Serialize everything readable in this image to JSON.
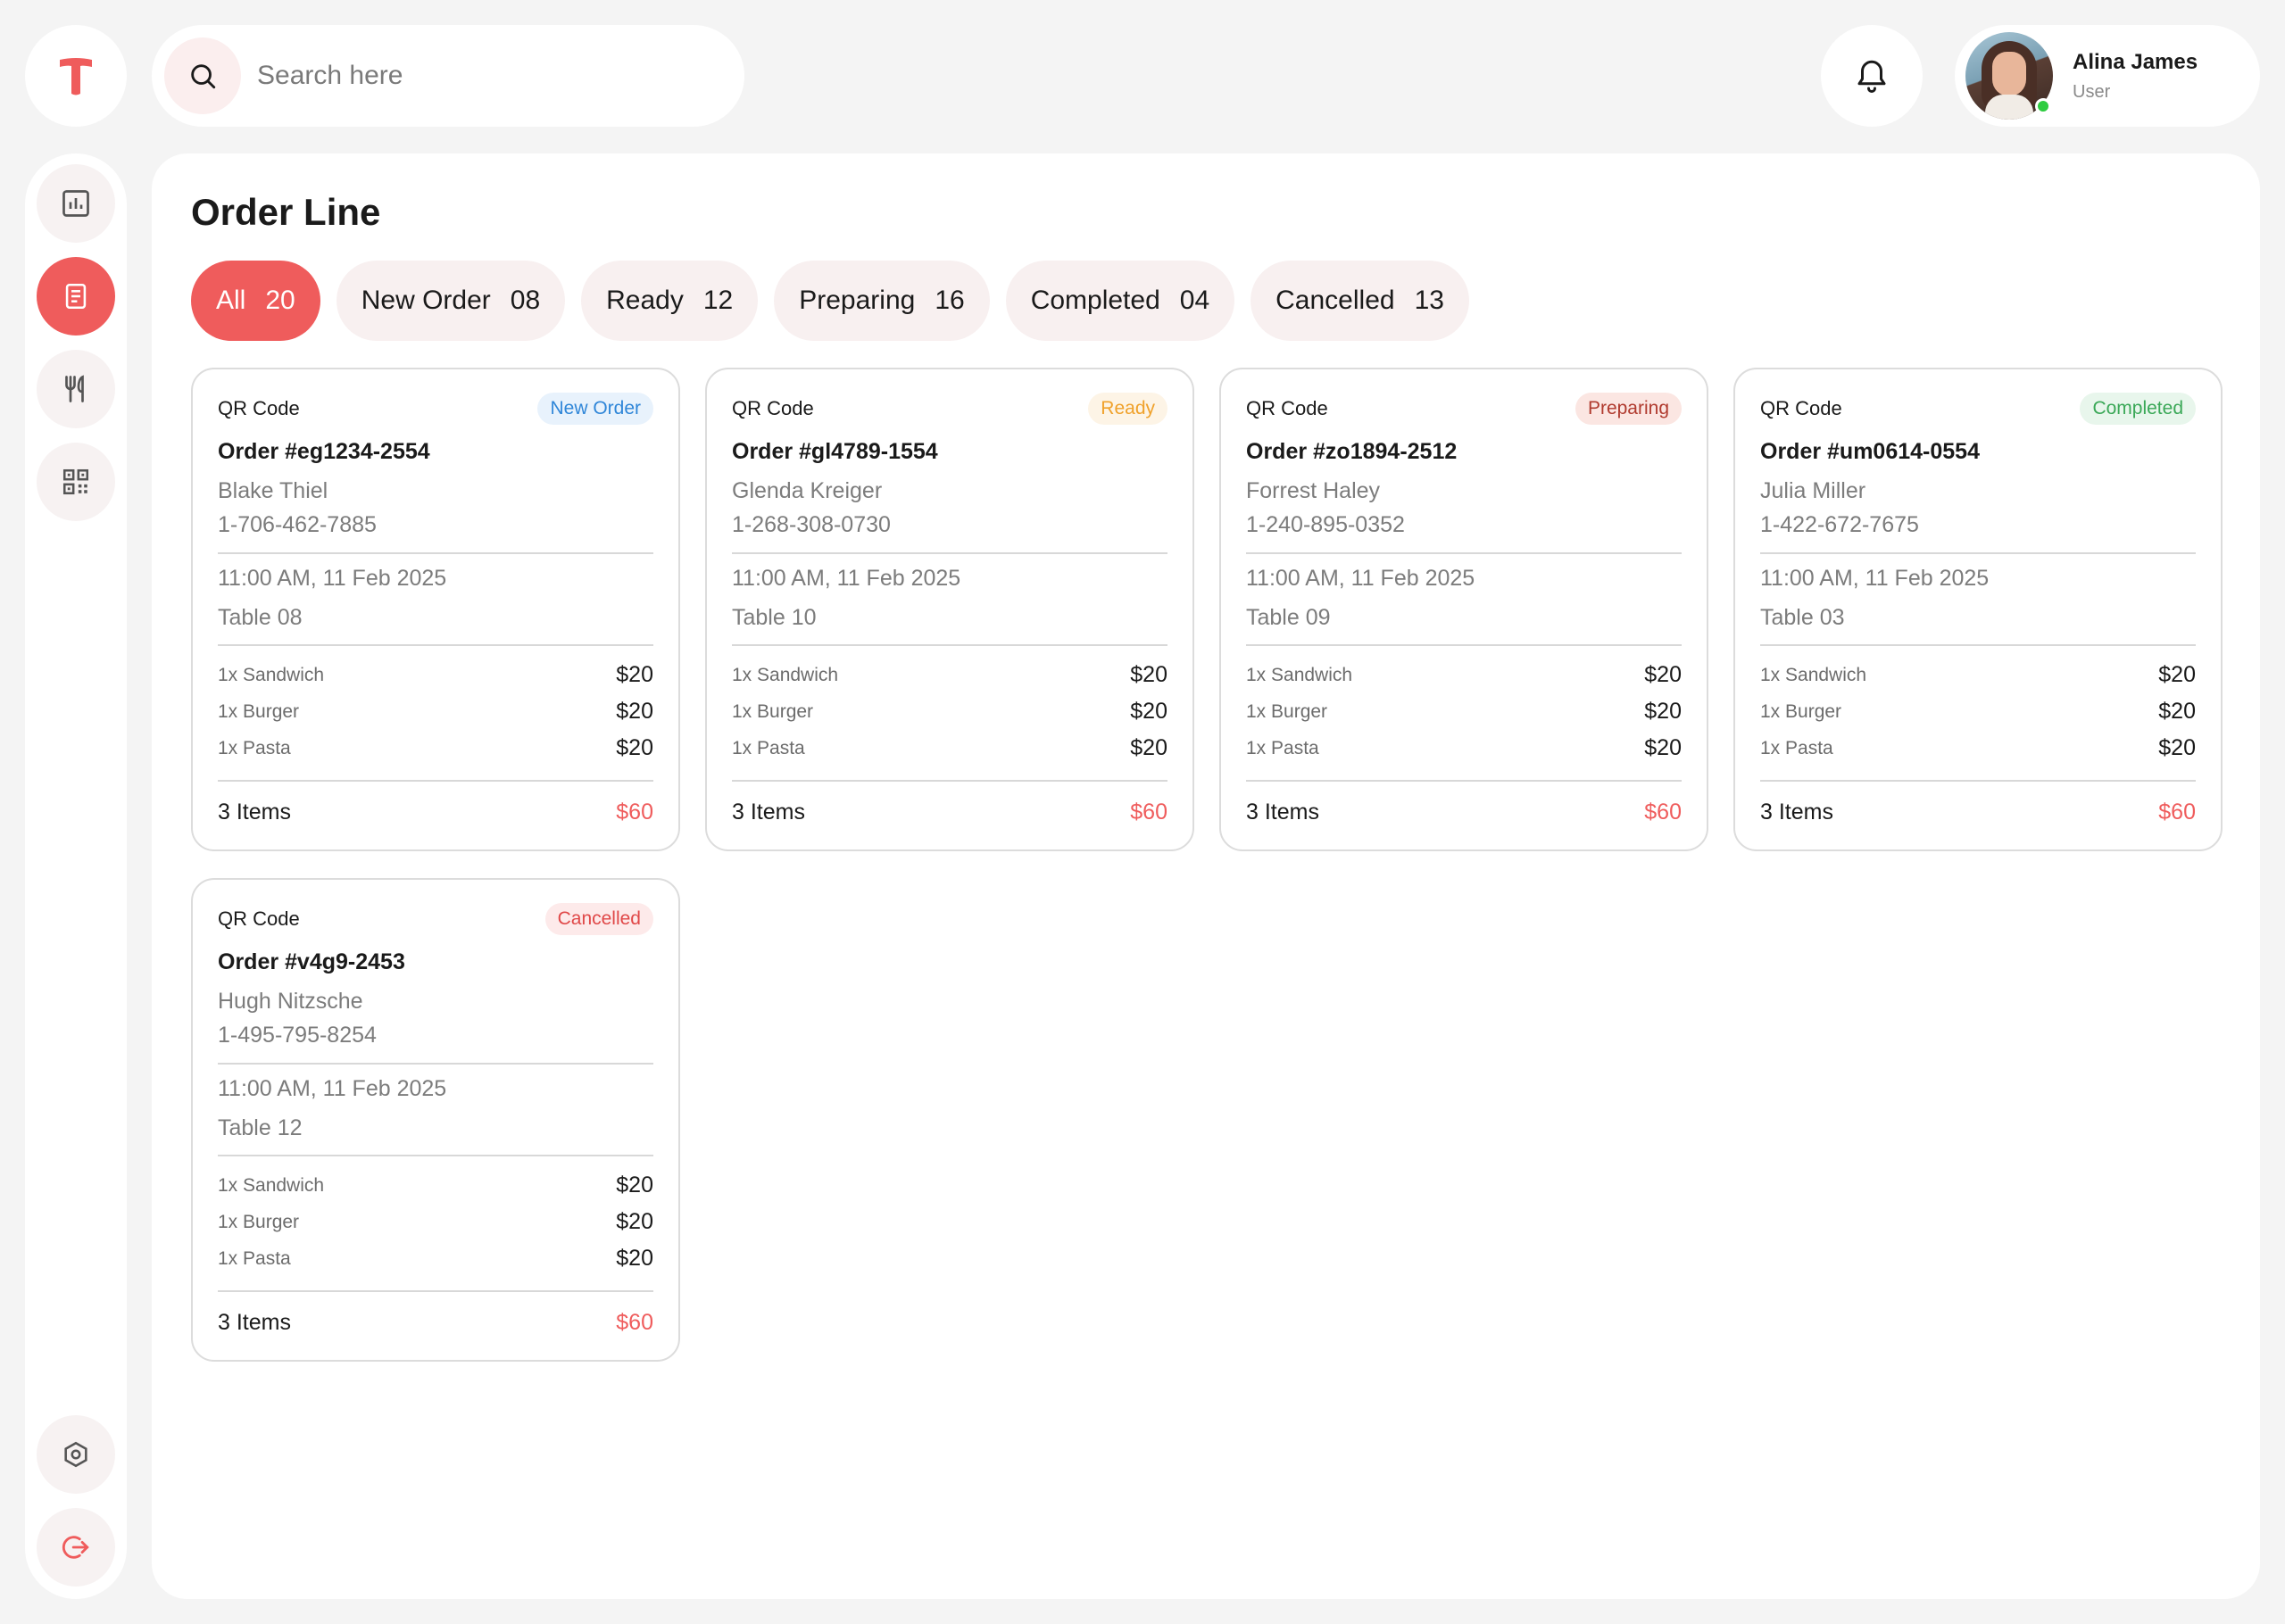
{
  "app": {
    "logo_letter": "T",
    "brand_color": "#ef5c5c"
  },
  "search": {
    "placeholder": "Search here",
    "value": ""
  },
  "user": {
    "name": "Alina James",
    "role": "User",
    "status_color": "#2ecc40"
  },
  "sidebar": {
    "items": [
      {
        "name": "dashboard",
        "icon": "bar-chart-icon"
      },
      {
        "name": "orders",
        "icon": "document-icon",
        "active": true
      },
      {
        "name": "menu",
        "icon": "utensils-icon"
      },
      {
        "name": "qr-codes",
        "icon": "qr-code-icon"
      }
    ],
    "bottom": [
      {
        "name": "settings",
        "icon": "hexagon-gear-icon"
      },
      {
        "name": "logout",
        "icon": "logout-icon"
      }
    ]
  },
  "main": {
    "title": "Order Line",
    "tabs": [
      {
        "label": "All",
        "count": "20",
        "active": true
      },
      {
        "label": "New Order",
        "count": "08"
      },
      {
        "label": "Ready",
        "count": "12"
      },
      {
        "label": "Preparing",
        "count": "16"
      },
      {
        "label": "Completed",
        "count": "04"
      },
      {
        "label": "Cancelled",
        "count": "13"
      }
    ],
    "orders": [
      {
        "qr_label": "QR Code",
        "status": "New Order",
        "status_color": "#2f86d8",
        "status_bg": "#e8f2fc",
        "order_id": "Order #eg1234-2554",
        "customer": "Blake Thiel",
        "phone": "1-706-462-7885",
        "time": "11:00 AM, 11 Feb 2025",
        "table": "Table 08",
        "items": [
          {
            "name": "1x Sandwich",
            "price": "$20"
          },
          {
            "name": "1x Burger",
            "price": "$20"
          },
          {
            "name": "1x Pasta",
            "price": "$20"
          }
        ],
        "count": "3 Items",
        "total": "$60"
      },
      {
        "qr_label": "QR Code",
        "status": "Ready",
        "status_color": "#f0a12a",
        "status_bg": "#fdf4e6",
        "order_id": "Order #gl4789-1554",
        "customer": "Glenda Kreiger",
        "phone": "1-268-308-0730",
        "time": "11:00 AM, 11 Feb 2025",
        "table": "Table 10",
        "items": [
          {
            "name": "1x Sandwich",
            "price": "$20"
          },
          {
            "name": "1x Burger",
            "price": "$20"
          },
          {
            "name": "1x Pasta",
            "price": "$20"
          }
        ],
        "count": "3 Items",
        "total": "$60"
      },
      {
        "qr_label": "QR Code",
        "status": "Preparing",
        "status_color": "#b03a2e",
        "status_bg": "#fbe6e2",
        "order_id": "Order #zo1894-2512",
        "customer": "Forrest Haley",
        "phone": "1-240-895-0352",
        "time": "11:00 AM, 11 Feb 2025",
        "table": "Table 09",
        "items": [
          {
            "name": "1x Sandwich",
            "price": "$20"
          },
          {
            "name": "1x Burger",
            "price": "$20"
          },
          {
            "name": "1x Pasta",
            "price": "$20"
          }
        ],
        "count": "3 Items",
        "total": "$60"
      },
      {
        "qr_label": "QR Code",
        "status": "Completed",
        "status_color": "#3aa857",
        "status_bg": "#e8f6ec",
        "order_id": "Order #um0614-0554",
        "customer": "Julia Miller",
        "phone": "1-422-672-7675",
        "time": "11:00 AM, 11 Feb 2025",
        "table": "Table 03",
        "items": [
          {
            "name": "1x Sandwich",
            "price": "$20"
          },
          {
            "name": "1x Burger",
            "price": "$20"
          },
          {
            "name": "1x Pasta",
            "price": "$20"
          }
        ],
        "count": "3 Items",
        "total": "$60"
      },
      {
        "qr_label": "QR Code",
        "status": "Cancelled",
        "status_color": "#e04848",
        "status_bg": "#fdeaea",
        "order_id": "Order #v4g9-2453",
        "customer": "Hugh Nitzsche",
        "phone": "1-495-795-8254",
        "time": "11:00 AM, 11 Feb 2025",
        "table": "Table 12",
        "items": [
          {
            "name": "1x Sandwich",
            "price": "$20"
          },
          {
            "name": "1x Burger",
            "price": "$20"
          },
          {
            "name": "1x Pasta",
            "price": "$20"
          }
        ],
        "count": "3 Items",
        "total": "$60"
      }
    ]
  }
}
